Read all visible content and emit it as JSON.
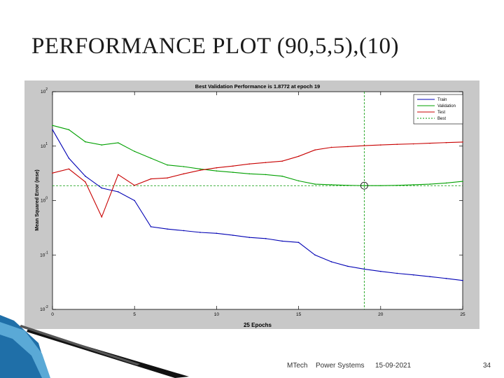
{
  "slide": {
    "title": "PERFORMANCE PLOT (90,5,5),(10)",
    "footer_left": "MTech",
    "footer_mid": "Power Systems",
    "footer_date": "15-09-2021",
    "page_number": "34"
  },
  "chart_data": {
    "type": "line",
    "title": "Best Validation Performance is 1.8772 at epoch 19",
    "xlabel": "25 Epochs",
    "ylabel": "Mean Squared Error  (mse)",
    "xlim": [
      0,
      25
    ],
    "ylim": [
      0.01,
      100
    ],
    "y_scale": "log",
    "grid": false,
    "legend_position": "top-right",
    "x_ticks": [
      "0",
      "5",
      "10",
      "15",
      "20",
      "25"
    ],
    "y_ticks": [
      {
        "base": "10",
        "exp": "-2"
      },
      {
        "base": "10",
        "exp": "-1"
      },
      {
        "base": "10",
        "exp": "0"
      },
      {
        "base": "10",
        "exp": "1"
      },
      {
        "base": "10",
        "exp": "2"
      }
    ],
    "x": [
      0,
      1,
      2,
      3,
      4,
      5,
      6,
      7,
      8,
      9,
      10,
      11,
      12,
      13,
      14,
      15,
      16,
      17,
      18,
      19,
      20,
      21,
      22,
      23,
      24,
      25
    ],
    "series": [
      {
        "name": "Train",
        "color": "#0000b4",
        "values": [
          20,
          6,
          2.8,
          1.7,
          1.45,
          1.0,
          0.33,
          0.3,
          0.28,
          0.26,
          0.25,
          0.23,
          0.21,
          0.2,
          0.18,
          0.17,
          0.1,
          0.075,
          0.062,
          0.055,
          0.05,
          0.046,
          0.043,
          0.04,
          0.037,
          0.034
        ]
      },
      {
        "name": "Validation",
        "color": "#00a000",
        "values": [
          24,
          20,
          12,
          10.5,
          11.5,
          8,
          6,
          4.5,
          4.2,
          3.8,
          3.5,
          3.3,
          3.1,
          3.0,
          2.8,
          2.3,
          2.0,
          1.95,
          1.9,
          1.8772,
          1.88,
          1.9,
          1.95,
          2.0,
          2.1,
          2.25
        ]
      },
      {
        "name": "Test",
        "color": "#c80000",
        "values": [
          3.2,
          3.8,
          2.2,
          0.5,
          3.0,
          1.9,
          2.5,
          2.6,
          3.1,
          3.6,
          4.0,
          4.3,
          4.7,
          5.0,
          5.3,
          6.5,
          8.5,
          9.5,
          9.8,
          10.2,
          10.5,
          10.8,
          11.0,
          11.3,
          11.6,
          11.9
        ]
      }
    ],
    "best": {
      "name": "Best",
      "epoch": 19,
      "value": 1.8772,
      "color": "#009600"
    }
  }
}
